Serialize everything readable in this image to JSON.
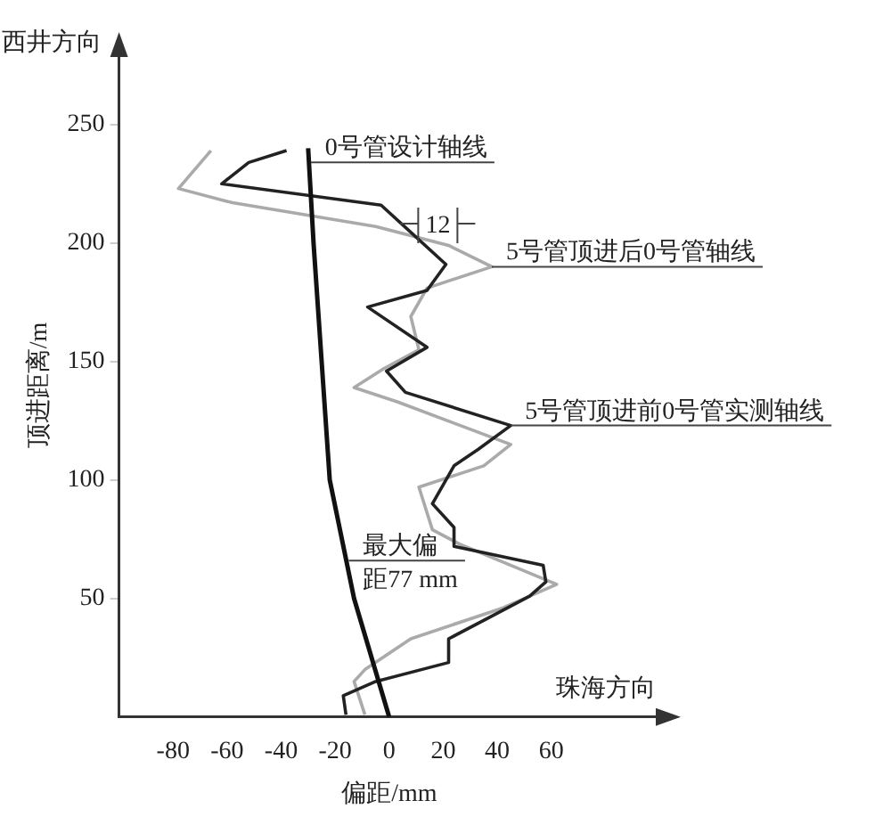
{
  "chart_data": {
    "type": "line",
    "xlabel": "偏距/mm",
    "ylabel": "顶进距离/m",
    "xlim": [
      -100,
      100
    ],
    "ylim": [
      0,
      280
    ],
    "xticks": [
      -80,
      -60,
      -40,
      -20,
      0,
      20,
      40,
      60
    ],
    "yticks": [
      50,
      100,
      150,
      200,
      250
    ],
    "grid": false,
    "legend": false,
    "marker": "none",
    "line_style": "solid",
    "series": [
      {
        "color": "#111111",
        "x": [
          -30,
          -28,
          -25,
          -22,
          -13,
          0
        ],
        "values": [
          240,
          200,
          150,
          100,
          50,
          0
        ]
      },
      {
        "color": "#222222",
        "x": [
          -38,
          -52,
          -62,
          -3,
          21,
          14,
          -8,
          14,
          -1,
          6,
          45,
          33,
          24,
          16,
          24,
          24,
          57,
          58,
          52,
          37,
          22,
          22,
          -5,
          -17,
          -16
        ],
        "values": [
          239,
          234,
          225,
          216,
          191,
          180,
          173,
          156,
          146,
          137,
          123,
          113,
          106,
          90,
          80,
          72,
          64,
          57,
          51,
          42,
          33,
          23,
          15,
          9,
          1
        ]
      },
      {
        "color": "#aaaaaa",
        "x": [
          -66,
          -78,
          -58,
          -5,
          22,
          38,
          14,
          8,
          11,
          -2,
          -13,
          3,
          45,
          35,
          11,
          16,
          26,
          62,
          42,
          8,
          -9,
          -13,
          -9
        ],
        "values": [
          239,
          223,
          217,
          207,
          199,
          190,
          181,
          169,
          155,
          147,
          139,
          133,
          115,
          106,
          97,
          79,
          73,
          56,
          46,
          33,
          20,
          15,
          1
        ]
      }
    ],
    "annotations": [
      "西井方向",
      "珠海方向",
      {
        "text": "0号管设计轴线",
        "x": -29,
        "y": 234
      },
      {
        "text": "5号管顶进后0号管轴线",
        "x": 38,
        "y": 190
      },
      {
        "text": "5号管顶进前0号管实测轴线",
        "x": 45,
        "y": 123
      },
      "12",
      {
        "text": "最大偏距77 mm",
        "x": -15,
        "y": 66
      }
    ]
  }
}
